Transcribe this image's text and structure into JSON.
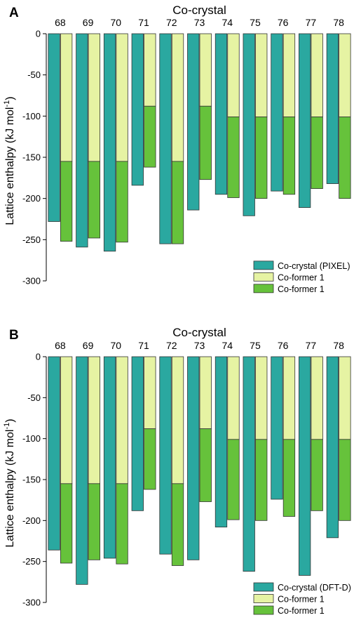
{
  "chart_data": [
    {
      "panel_label": "A",
      "type": "bar",
      "title": "Co-crystal",
      "ylabel": "Lattice enthalpy (kJ mol",
      "ylabel_sup": "-1",
      "ylabel_end": ")",
      "ylim": [
        -300,
        0
      ],
      "yticks": [
        0,
        -50,
        -100,
        -150,
        -200,
        -250,
        -300
      ],
      "categories": [
        "68",
        "69",
        "70",
        "71",
        "72",
        "73",
        "74",
        "75",
        "76",
        "77",
        "78"
      ],
      "cocrystal": [
        -228,
        -259,
        -264,
        -184,
        -255,
        -214,
        -195,
        -221,
        -191,
        -211,
        -182
      ],
      "former1": [
        -155,
        -155,
        -155,
        -88,
        -155,
        -88,
        -101,
        -101,
        -101,
        -101,
        -101
      ],
      "former2_total": [
        -252,
        -248,
        -253,
        -162,
        -255,
        -177,
        -199,
        -200,
        -195,
        -188,
        -200
      ],
      "series_colors": [
        "#2aa8a0",
        "#e6f3a3",
        "#66c23b"
      ],
      "legend": [
        "Co-crystal (PIXEL)",
        "Co-former 1",
        "Co-former 1"
      ],
      "legend_position": "bottom-right"
    },
    {
      "panel_label": "B",
      "type": "bar",
      "title": "Co-crystal",
      "ylabel": "Lattice enthalpy (kJ mol",
      "ylabel_sup": "-1",
      "ylabel_end": ")",
      "ylim": [
        -300,
        0
      ],
      "yticks": [
        0,
        -50,
        -100,
        -150,
        -200,
        -250,
        -300
      ],
      "categories": [
        "68",
        "69",
        "70",
        "71",
        "72",
        "73",
        "74",
        "75",
        "76",
        "77",
        "78"
      ],
      "cocrystal": [
        -236,
        -278,
        -246,
        -188,
        -241,
        -248,
        -208,
        -262,
        -174,
        -267,
        -221
      ],
      "former1": [
        -155,
        -155,
        -155,
        -88,
        -155,
        -88,
        -101,
        -101,
        -101,
        -101,
        -101
      ],
      "former2_total": [
        -252,
        -248,
        -253,
        -162,
        -255,
        -177,
        -199,
        -200,
        -195,
        -188,
        -200
      ],
      "series_colors": [
        "#2aa8a0",
        "#e6f3a3",
        "#66c23b"
      ],
      "legend": [
        "Co-crystal (DFT-D)",
        "Co-former 1",
        "Co-former 1"
      ],
      "legend_position": "bottom-right"
    }
  ]
}
